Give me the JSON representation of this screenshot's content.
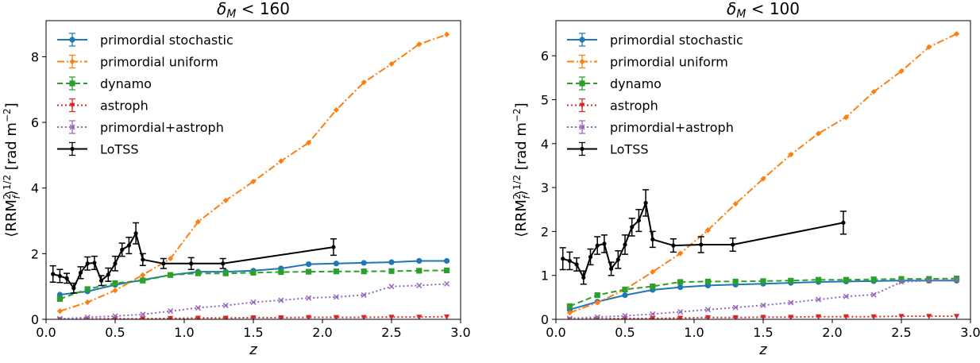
{
  "chart_data": [
    {
      "type": "line",
      "title": "δ_M < 160",
      "xlabel": "z",
      "ylabel": "⟨RRM_f²⟩^(1/2) [rad m⁻²]",
      "xlim": [
        0.0,
        3.0
      ],
      "ylim": [
        0,
        9.1
      ],
      "xticks": [
        "0.0",
        "0.5",
        "1.0",
        "1.5",
        "2.0",
        "2.5",
        "3.0"
      ],
      "xtick_values": [
        0,
        0.5,
        1,
        1.5,
        2,
        2.5,
        3
      ],
      "yticks": [
        "0",
        "2",
        "4",
        "6",
        "8"
      ],
      "ytick_values": [
        0,
        2,
        4,
        6,
        8
      ],
      "grid": false,
      "legend_position": "top-left",
      "series": [
        {
          "name": "primordial stochastic",
          "color": "#1f77b4",
          "dash": "solid",
          "marker": "circle",
          "x": [
            0.1,
            0.3,
            0.5,
            0.7,
            0.9,
            1.1,
            1.3,
            1.5,
            1.7,
            1.9,
            2.1,
            2.3,
            2.5,
            2.7,
            2.9
          ],
          "y": [
            0.75,
            0.85,
            1.05,
            1.2,
            1.35,
            1.45,
            1.45,
            1.48,
            1.55,
            1.68,
            1.7,
            1.72,
            1.74,
            1.78,
            1.78
          ]
        },
        {
          "name": "primordial uniform",
          "color": "#ff7f0e",
          "dash": "dashdot",
          "marker": "diamond",
          "x": [
            0.1,
            0.3,
            0.5,
            0.7,
            0.9,
            1.1,
            1.3,
            1.5,
            1.7,
            1.9,
            2.1,
            2.3,
            2.5,
            2.7,
            2.9
          ],
          "y": [
            0.25,
            0.52,
            0.88,
            1.35,
            1.85,
            2.97,
            3.62,
            4.2,
            4.82,
            5.38,
            6.38,
            7.22,
            7.78,
            8.38,
            8.68
          ]
        },
        {
          "name": "dynamo",
          "color": "#2ca02c",
          "dash": "dashed",
          "marker": "square",
          "x": [
            0.1,
            0.3,
            0.5,
            0.7,
            0.9,
            1.1,
            1.3,
            1.5,
            1.7,
            1.9,
            2.1,
            2.3,
            2.5,
            2.7,
            2.9
          ],
          "y": [
            0.62,
            0.92,
            1.1,
            1.18,
            1.35,
            1.4,
            1.4,
            1.42,
            1.44,
            1.45,
            1.46,
            1.46,
            1.47,
            1.48,
            1.49
          ]
        },
        {
          "name": "astroph",
          "color": "#d62728",
          "dash": "dotted",
          "marker": "triangle-down",
          "x": [
            0.1,
            0.3,
            0.5,
            0.7,
            0.9,
            1.1,
            1.3,
            1.5,
            1.7,
            1.9,
            2.1,
            2.3,
            2.5,
            2.7,
            2.9
          ],
          "y": [
            0.0,
            0.01,
            0.02,
            0.02,
            0.03,
            0.04,
            0.04,
            0.05,
            0.05,
            0.06,
            0.06,
            0.06,
            0.07,
            0.07,
            0.08
          ]
        },
        {
          "name": "primordial+astroph",
          "color": "#9467bd",
          "dash": "dotted",
          "marker": "x",
          "x": [
            0.1,
            0.3,
            0.5,
            0.7,
            0.9,
            1.1,
            1.3,
            1.5,
            1.7,
            1.9,
            2.1,
            2.3,
            2.5,
            2.7,
            2.9
          ],
          "y": [
            0.02,
            0.06,
            0.1,
            0.15,
            0.25,
            0.35,
            0.42,
            0.52,
            0.58,
            0.65,
            0.68,
            0.74,
            1.0,
            1.03,
            1.08
          ]
        },
        {
          "name": "LoTSS",
          "color": "#000000",
          "dash": "solid",
          "marker": "point",
          "errorbars": true,
          "x": [
            0.05,
            0.1,
            0.15,
            0.2,
            0.25,
            0.3,
            0.35,
            0.4,
            0.45,
            0.5,
            0.55,
            0.6,
            0.65,
            0.7,
            0.85,
            1.05,
            1.28,
            2.08
          ],
          "y": [
            1.38,
            1.32,
            1.25,
            0.95,
            1.42,
            1.7,
            1.72,
            1.18,
            1.36,
            1.7,
            2.12,
            2.25,
            2.62,
            1.82,
            1.7,
            1.7,
            1.7,
            2.2
          ],
          "yerr": [
            0.25,
            0.2,
            0.15,
            0.15,
            0.18,
            0.2,
            0.2,
            0.15,
            0.2,
            0.22,
            0.2,
            0.25,
            0.32,
            0.18,
            0.15,
            0.18,
            0.15,
            0.25
          ]
        }
      ]
    },
    {
      "type": "line",
      "title": "δ_M < 100",
      "xlabel": "z",
      "ylabel": "⟨RRM_f²⟩^(1/2) [rad m⁻²]",
      "xlim": [
        0.0,
        3.0
      ],
      "ylim": [
        0,
        6.8
      ],
      "xticks": [
        "0.0",
        "0.5",
        "1.0",
        "1.5",
        "2.0",
        "2.5",
        "3.0"
      ],
      "xtick_values": [
        0,
        0.5,
        1,
        1.5,
        2,
        2.5,
        3
      ],
      "yticks": [
        "0",
        "1",
        "2",
        "3",
        "4",
        "5",
        "6"
      ],
      "ytick_values": [
        0,
        1,
        2,
        3,
        4,
        5,
        6
      ],
      "grid": false,
      "legend_position": "top-left",
      "series": [
        {
          "name": "primordial stochastic",
          "color": "#1f77b4",
          "dash": "solid",
          "marker": "circle",
          "x": [
            0.1,
            0.3,
            0.5,
            0.7,
            0.9,
            1.1,
            1.3,
            1.5,
            1.7,
            1.9,
            2.1,
            2.3,
            2.5,
            2.7,
            2.9
          ],
          "y": [
            0.22,
            0.4,
            0.55,
            0.67,
            0.73,
            0.77,
            0.79,
            0.81,
            0.83,
            0.85,
            0.86,
            0.87,
            0.88,
            0.88,
            0.88
          ]
        },
        {
          "name": "primordial uniform",
          "color": "#ff7f0e",
          "dash": "dashdot",
          "marker": "diamond",
          "x": [
            0.1,
            0.3,
            0.5,
            0.7,
            0.9,
            1.1,
            1.3,
            1.5,
            1.7,
            1.9,
            2.1,
            2.3,
            2.5,
            2.7,
            2.9
          ],
          "y": [
            0.15,
            0.38,
            0.68,
            1.08,
            1.5,
            2.03,
            2.63,
            3.2,
            3.75,
            4.23,
            4.6,
            5.18,
            5.65,
            6.2,
            6.5
          ]
        },
        {
          "name": "dynamo",
          "color": "#2ca02c",
          "dash": "dashed",
          "marker": "square",
          "x": [
            0.1,
            0.3,
            0.5,
            0.7,
            0.9,
            1.1,
            1.3,
            1.5,
            1.7,
            1.9,
            2.1,
            2.3,
            2.5,
            2.7,
            2.9
          ],
          "y": [
            0.3,
            0.55,
            0.68,
            0.75,
            0.85,
            0.86,
            0.86,
            0.87,
            0.88,
            0.9,
            0.9,
            0.91,
            0.92,
            0.92,
            0.93
          ]
        },
        {
          "name": "astroph",
          "color": "#d62728",
          "dash": "dotted",
          "marker": "triangle-down",
          "x": [
            0.1,
            0.3,
            0.5,
            0.7,
            0.9,
            1.1,
            1.3,
            1.5,
            1.7,
            1.9,
            2.1,
            2.3,
            2.5,
            2.7,
            2.9
          ],
          "y": [
            0.0,
            0.01,
            0.02,
            0.02,
            0.03,
            0.04,
            0.04,
            0.05,
            0.05,
            0.06,
            0.06,
            0.06,
            0.07,
            0.07,
            0.07
          ]
        },
        {
          "name": "primordial+astroph",
          "color": "#9467bd",
          "dash": "dotted",
          "marker": "x",
          "x": [
            0.1,
            0.3,
            0.5,
            0.7,
            0.9,
            1.1,
            1.3,
            1.5,
            1.7,
            1.9,
            2.1,
            2.3,
            2.5,
            2.7,
            2.9
          ],
          "y": [
            0.02,
            0.05,
            0.08,
            0.12,
            0.17,
            0.22,
            0.27,
            0.32,
            0.38,
            0.45,
            0.52,
            0.56,
            0.85,
            0.88,
            0.9
          ]
        },
        {
          "name": "LoTSS",
          "color": "#000000",
          "dash": "solid",
          "marker": "point",
          "errorbars": true,
          "x": [
            0.05,
            0.1,
            0.15,
            0.2,
            0.25,
            0.3,
            0.35,
            0.4,
            0.45,
            0.5,
            0.55,
            0.6,
            0.65,
            0.7,
            0.85,
            1.05,
            1.28,
            2.08
          ],
          "y": [
            1.38,
            1.33,
            1.25,
            0.95,
            1.42,
            1.68,
            1.72,
            1.15,
            1.36,
            1.7,
            2.1,
            2.25,
            2.65,
            1.82,
            1.68,
            1.7,
            1.7,
            2.2
          ],
          "yerr": [
            0.25,
            0.2,
            0.15,
            0.15,
            0.18,
            0.2,
            0.2,
            0.15,
            0.2,
            0.22,
            0.2,
            0.25,
            0.3,
            0.18,
            0.15,
            0.18,
            0.15,
            0.26
          ]
        }
      ]
    }
  ]
}
